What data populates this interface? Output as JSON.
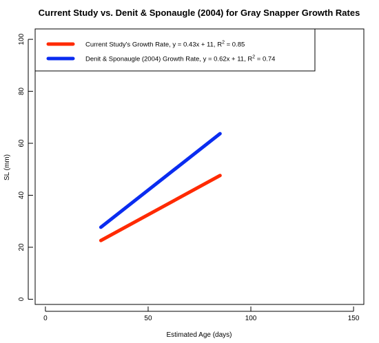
{
  "chart_data": {
    "type": "line",
    "title": "Current Study vs. Denit & Sponaugle (2004) for Gray Snapper Growth Rates",
    "xlabel": "Estimated Age (days)",
    "ylabel": "SL (mm)",
    "xlim": [
      -5,
      155
    ],
    "ylim": [
      -2,
      104
    ],
    "xticks": [
      0,
      50,
      100,
      150
    ],
    "yticks": [
      0,
      20,
      40,
      60,
      80,
      100
    ],
    "grid": false,
    "legend_position": "top-left",
    "series": [
      {
        "name": "Current Study's Growth Rate, y = 0.43x + 11, R² = 0.85",
        "legend_main": "Current Study's Growth Rate, y = 0.43x + 11, R",
        "legend_sup": "2",
        "legend_tail": " = 0.85",
        "color": "#ff2a00",
        "x": [
          27,
          85
        ],
        "y": [
          22.6,
          47.6
        ]
      },
      {
        "name": "Denit & Sponaugle (2004) Growth Rate, y = 0.62x + 11, R² = 0.74",
        "legend_main": "Denit & Sponaugle (2004) Growth Rate, y = 0.62x + 11, R",
        "legend_sup": "2",
        "legend_tail": " = 0.74",
        "color": "#0a2cf0",
        "x": [
          27,
          85
        ],
        "y": [
          27.7,
          63.7
        ]
      }
    ]
  }
}
